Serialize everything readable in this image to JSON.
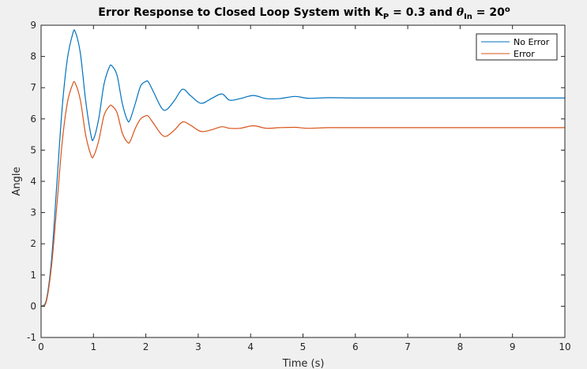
{
  "chart_data": {
    "type": "line",
    "title_parts": {
      "pre": "Error Response to Closed Loop System with K",
      "kp_sub": "P",
      "mid": " = 0.3 and ",
      "theta": "θ",
      "theta_sub": "In",
      "post": " = 20",
      "deg_sup": "o"
    },
    "xlabel": "Time (s)",
    "ylabel": "Angle",
    "xlim": [
      0,
      10
    ],
    "ylim": [
      -1,
      9
    ],
    "xticks": [
      0,
      1,
      2,
      3,
      4,
      5,
      6,
      7,
      8,
      9,
      10
    ],
    "yticks": [
      -1,
      0,
      1,
      2,
      3,
      4,
      5,
      6,
      7,
      8,
      9
    ],
    "grid": false,
    "legend_position": "top-right",
    "series": [
      {
        "name": "No Error",
        "color": "#0072bd",
        "x": [
          0,
          0.1,
          0.2,
          0.3,
          0.4,
          0.5,
          0.6,
          0.65,
          0.75,
          0.85,
          0.95,
          1.0,
          1.1,
          1.2,
          1.3,
          1.35,
          1.45,
          1.55,
          1.65,
          1.7,
          1.8,
          1.9,
          2.0,
          2.05,
          2.15,
          2.3,
          2.4,
          2.55,
          2.7,
          2.85,
          3.05,
          3.25,
          3.45,
          3.6,
          3.8,
          4.05,
          4.3,
          4.55,
          4.85,
          5.1,
          5.5,
          6,
          7,
          8,
          9,
          10
        ],
        "values": [
          0,
          0.2,
          1.5,
          3.9,
          6.3,
          7.9,
          8.7,
          8.8,
          8.1,
          6.6,
          5.5,
          5.35,
          6.0,
          7.1,
          7.65,
          7.7,
          7.4,
          6.5,
          5.95,
          5.98,
          6.5,
          7.05,
          7.2,
          7.18,
          6.85,
          6.35,
          6.3,
          6.6,
          6.95,
          6.75,
          6.5,
          6.65,
          6.8,
          6.6,
          6.65,
          6.75,
          6.65,
          6.65,
          6.72,
          6.66,
          6.68,
          6.67,
          6.67,
          6.67,
          6.67,
          6.67
        ]
      },
      {
        "name": "Error",
        "color": "#d95319",
        "x": [
          0,
          0.1,
          0.2,
          0.3,
          0.4,
          0.5,
          0.6,
          0.65,
          0.75,
          0.85,
          0.95,
          1.0,
          1.1,
          1.2,
          1.3,
          1.35,
          1.45,
          1.55,
          1.65,
          1.7,
          1.8,
          1.9,
          2.0,
          2.05,
          2.15,
          2.3,
          2.4,
          2.55,
          2.7,
          2.85,
          3.05,
          3.25,
          3.45,
          3.6,
          3.8,
          4.05,
          4.3,
          4.55,
          4.85,
          5.1,
          5.5,
          6,
          7,
          8,
          9,
          10
        ],
        "values": [
          0,
          0.15,
          1.3,
          3.2,
          5.2,
          6.5,
          7.1,
          7.15,
          6.6,
          5.5,
          4.85,
          4.8,
          5.3,
          6.1,
          6.4,
          6.42,
          6.2,
          5.55,
          5.25,
          5.28,
          5.7,
          6.0,
          6.1,
          6.08,
          5.85,
          5.5,
          5.45,
          5.65,
          5.9,
          5.8,
          5.6,
          5.65,
          5.75,
          5.7,
          5.7,
          5.78,
          5.7,
          5.72,
          5.73,
          5.7,
          5.72,
          5.72,
          5.72,
          5.72,
          5.72,
          5.72
        ]
      }
    ]
  }
}
